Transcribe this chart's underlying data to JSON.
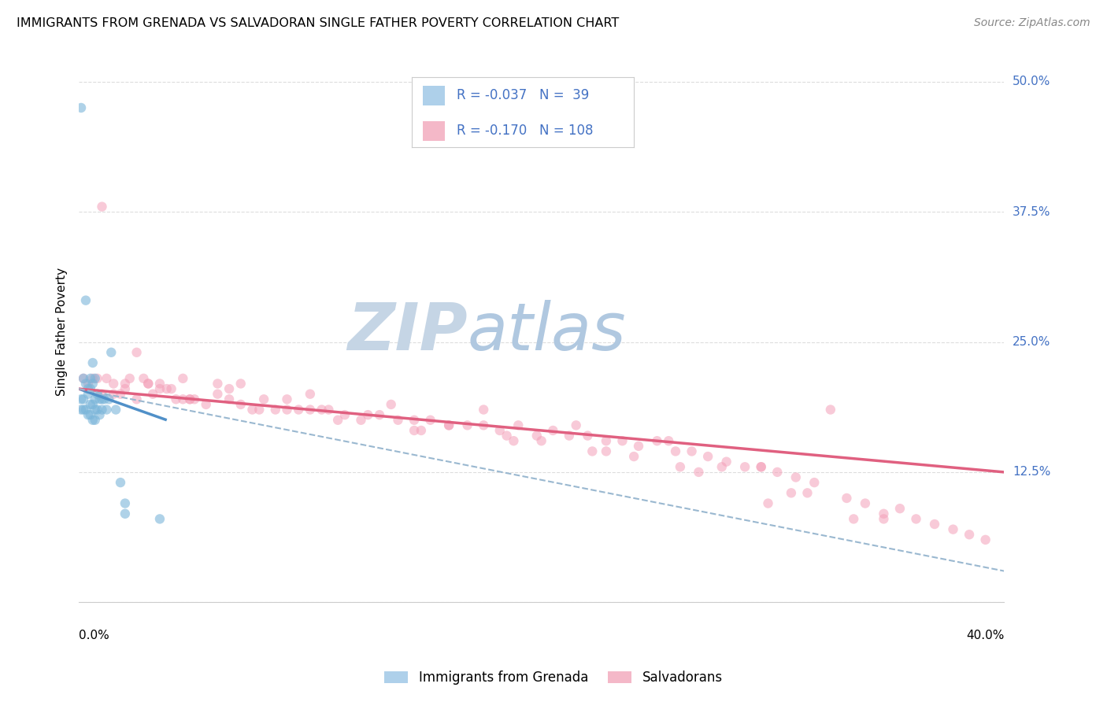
{
  "title": "IMMIGRANTS FROM GRENADA VS SALVADORAN SINGLE FATHER POVERTY CORRELATION CHART",
  "source": "Source: ZipAtlas.com",
  "ylabel": "Single Father Poverty",
  "watermark_top": "ZIP",
  "watermark_bot": "atlas",
  "watermark_color_top": "#c5d5e5",
  "watermark_color_bot": "#b8cfe0",
  "legend_r1": "R = -0.037",
  "legend_n1": "N =  39",
  "legend_r2": "R = -0.170",
  "legend_n2": "N = 108",
  "legend_label1": "Immigrants from Grenada",
  "legend_label2": "Salvadorans",
  "color_grenada_scatter": "#7ab5d9",
  "color_salvadoran_scatter": "#f4a0b8",
  "color_grenada_legend": "#aed0ea",
  "color_salvadoran_legend": "#f4b8c8",
  "color_trend_grenada": "#5090c8",
  "color_trend_salvadoran": "#e06080",
  "color_trend_dashed": "#9ab8d0",
  "color_text_blue": "#4472c4",
  "grid_color": "#dddddd",
  "xlim": [
    0.0,
    0.4
  ],
  "ylim": [
    0.0,
    0.52
  ],
  "grenada_x": [
    0.001,
    0.001,
    0.002,
    0.002,
    0.003,
    0.003,
    0.004,
    0.004,
    0.005,
    0.005,
    0.005,
    0.006,
    0.006,
    0.006,
    0.007,
    0.007,
    0.007,
    0.008,
    0.008,
    0.009,
    0.009,
    0.01,
    0.01,
    0.011,
    0.012,
    0.013,
    0.014,
    0.016,
    0.018,
    0.02,
    0.001,
    0.002,
    0.003,
    0.004,
    0.005,
    0.006,
    0.007,
    0.02,
    0.035
  ],
  "grenada_y": [
    0.475,
    0.195,
    0.215,
    0.195,
    0.29,
    0.21,
    0.205,
    0.2,
    0.215,
    0.205,
    0.19,
    0.23,
    0.21,
    0.19,
    0.215,
    0.195,
    0.185,
    0.2,
    0.185,
    0.195,
    0.18,
    0.195,
    0.185,
    0.195,
    0.185,
    0.195,
    0.24,
    0.185,
    0.115,
    0.095,
    0.185,
    0.185,
    0.185,
    0.18,
    0.18,
    0.175,
    0.175,
    0.085,
    0.08
  ],
  "salvadoran_x": [
    0.002,
    0.004,
    0.006,
    0.008,
    0.01,
    0.012,
    0.015,
    0.018,
    0.02,
    0.022,
    0.025,
    0.028,
    0.03,
    0.032,
    0.035,
    0.038,
    0.04,
    0.042,
    0.045,
    0.048,
    0.05,
    0.055,
    0.06,
    0.065,
    0.07,
    0.075,
    0.08,
    0.085,
    0.09,
    0.095,
    0.1,
    0.108,
    0.115,
    0.122,
    0.13,
    0.138,
    0.145,
    0.152,
    0.16,
    0.168,
    0.175,
    0.182,
    0.19,
    0.198,
    0.205,
    0.212,
    0.22,
    0.228,
    0.235,
    0.242,
    0.25,
    0.258,
    0.265,
    0.272,
    0.28,
    0.288,
    0.295,
    0.302,
    0.31,
    0.318,
    0.325,
    0.332,
    0.34,
    0.348,
    0.355,
    0.362,
    0.37,
    0.378,
    0.385,
    0.392,
    0.01,
    0.025,
    0.045,
    0.07,
    0.1,
    0.135,
    0.175,
    0.215,
    0.255,
    0.295,
    0.015,
    0.035,
    0.06,
    0.09,
    0.125,
    0.16,
    0.2,
    0.24,
    0.278,
    0.315,
    0.02,
    0.048,
    0.078,
    0.112,
    0.148,
    0.185,
    0.222,
    0.26,
    0.298,
    0.335,
    0.03,
    0.065,
    0.105,
    0.145,
    0.188,
    0.228,
    0.268,
    0.308,
    0.348
  ],
  "salvadoran_y": [
    0.215,
    0.21,
    0.215,
    0.215,
    0.2,
    0.215,
    0.21,
    0.2,
    0.21,
    0.215,
    0.195,
    0.215,
    0.21,
    0.2,
    0.21,
    0.205,
    0.205,
    0.195,
    0.195,
    0.195,
    0.195,
    0.19,
    0.21,
    0.205,
    0.19,
    0.185,
    0.195,
    0.185,
    0.195,
    0.185,
    0.185,
    0.185,
    0.18,
    0.175,
    0.18,
    0.175,
    0.175,
    0.175,
    0.17,
    0.17,
    0.17,
    0.165,
    0.17,
    0.16,
    0.165,
    0.16,
    0.16,
    0.155,
    0.155,
    0.15,
    0.155,
    0.145,
    0.145,
    0.14,
    0.135,
    0.13,
    0.13,
    0.125,
    0.12,
    0.115,
    0.185,
    0.1,
    0.095,
    0.085,
    0.09,
    0.08,
    0.075,
    0.07,
    0.065,
    0.06,
    0.38,
    0.24,
    0.215,
    0.21,
    0.2,
    0.19,
    0.185,
    0.17,
    0.155,
    0.13,
    0.2,
    0.205,
    0.2,
    0.185,
    0.18,
    0.17,
    0.155,
    0.14,
    0.13,
    0.105,
    0.205,
    0.195,
    0.185,
    0.175,
    0.165,
    0.16,
    0.145,
    0.13,
    0.095,
    0.08,
    0.21,
    0.195,
    0.185,
    0.165,
    0.155,
    0.145,
    0.125,
    0.105,
    0.08
  ],
  "grenada_trend_x": [
    0.0,
    0.038
  ],
  "grenada_trend_y_start": 0.205,
  "grenada_trend_y_end": 0.175,
  "salvadoran_trend_x": [
    0.0,
    0.4
  ],
  "salvadoran_trend_y_start": 0.205,
  "salvadoran_trend_y_end": 0.125,
  "dashed_trend_x": [
    0.0,
    0.4
  ],
  "dashed_trend_y_start": 0.205,
  "dashed_trend_y_end": 0.03
}
